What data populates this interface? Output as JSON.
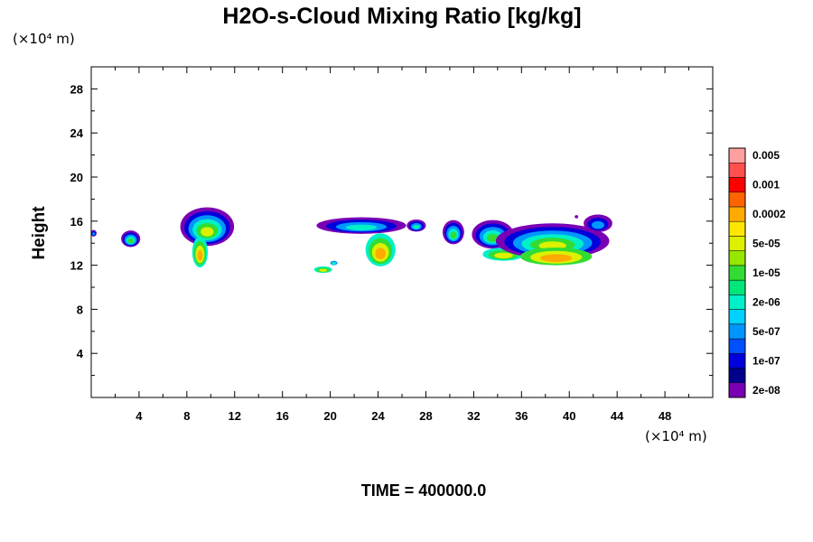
{
  "chart_data": {
    "type": "heatmap",
    "title": "H2O-s-Cloud Mixing Ratio [kg/kg]",
    "ylabel": "Height",
    "x_unit_label": "(×10⁴ m)",
    "y_unit_label": "(×10⁴ m)",
    "footer": "TIME = 400000.0",
    "xlim": [
      0,
      52
    ],
    "ylim": [
      0,
      30
    ],
    "x_ticks": [
      4,
      8,
      12,
      16,
      20,
      24,
      28,
      32,
      36,
      40,
      44,
      48
    ],
    "x_tick_labels": [
      "4",
      "8",
      "12",
      "16",
      "20",
      "24",
      "28",
      "32",
      "36",
      "40",
      "44",
      "48"
    ],
    "y_ticks": [
      4,
      8,
      12,
      16,
      20,
      24,
      28
    ],
    "y_tick_labels": [
      "4",
      "8",
      "12",
      "16",
      "20",
      "24",
      "28"
    ],
    "legend_placement": "right",
    "colorbar": {
      "colors": [
        "#7a00b4",
        "#00008c",
        "#0000dc",
        "#0050ff",
        "#0096ff",
        "#00d2ff",
        "#00f0c8",
        "#00e678",
        "#32dc32",
        "#96e600",
        "#dcf000",
        "#ffe600",
        "#ffaa00",
        "#ff6400",
        "#ff0000",
        "#ff5050",
        "#ffa0a0"
      ],
      "labels": [
        {
          "text": "2e-08",
          "level": 0.5
        },
        {
          "text": "1e-07",
          "level": 2.5
        },
        {
          "text": "5e-07",
          "level": 4.5
        },
        {
          "text": "2e-06",
          "level": 6.5
        },
        {
          "text": "1e-05",
          "level": 8.5
        },
        {
          "text": "5e-05",
          "level": 10.5
        },
        {
          "text": "0.0002",
          "level": 12.5
        },
        {
          "text": "0.001",
          "level": 14.5
        },
        {
          "text": "0.005",
          "level": 16.5
        }
      ]
    },
    "clouds": [
      {
        "shape": "blob",
        "xc": 3.3,
        "yc": 14.4,
        "w": 1.6,
        "h": 1.5,
        "levels": [
          0,
          2,
          4,
          6,
          8
        ]
      },
      {
        "shape": "blob",
        "xc": 0.2,
        "yc": 14.9,
        "w": 0.5,
        "h": 0.6,
        "levels": [
          0,
          2,
          4
        ]
      },
      {
        "shape": "blob",
        "xc": 9.7,
        "yc": 15.5,
        "w": 4.5,
        "h": 3.5,
        "levels": [
          0,
          2,
          4,
          6,
          8,
          10
        ]
      },
      {
        "shape": "blob",
        "xc": 9.1,
        "yc": 13.2,
        "w": 1.3,
        "h": 2.8,
        "levels": [
          6,
          8,
          10,
          12
        ]
      },
      {
        "shape": "blob",
        "xc": 19.4,
        "yc": 11.6,
        "w": 1.5,
        "h": 0.6,
        "levels": [
          6,
          8,
          10
        ]
      },
      {
        "shape": "blob",
        "xc": 20.3,
        "yc": 12.2,
        "w": 0.6,
        "h": 0.4,
        "levels": [
          4,
          6
        ]
      },
      {
        "shape": "blob",
        "xc": 22.6,
        "yc": 15.6,
        "w": 7.5,
        "h": 1.5,
        "levels": [
          0,
          2,
          4,
          6
        ]
      },
      {
        "shape": "blob",
        "xc": 24.2,
        "yc": 13.4,
        "w": 2.5,
        "h": 3.0,
        "levels": [
          6,
          8,
          10,
          12
        ]
      },
      {
        "shape": "blob",
        "xc": 27.2,
        "yc": 15.6,
        "w": 1.6,
        "h": 1.1,
        "levels": [
          0,
          2,
          4,
          6
        ]
      },
      {
        "shape": "blob",
        "xc": 30.3,
        "yc": 15.0,
        "w": 1.8,
        "h": 2.2,
        "levels": [
          0,
          2,
          4,
          6,
          8
        ]
      },
      {
        "shape": "blob",
        "xc": 33.6,
        "yc": 14.8,
        "w": 3.5,
        "h": 2.6,
        "levels": [
          0,
          2,
          4,
          6,
          8
        ]
      },
      {
        "shape": "blob",
        "xc": 34.5,
        "yc": 13.0,
        "w": 3.5,
        "h": 1.2,
        "levels": [
          6,
          8,
          10
        ]
      },
      {
        "shape": "blob",
        "xc": 38.6,
        "yc": 14.2,
        "w": 9.5,
        "h": 3.2,
        "levels": [
          0,
          2,
          4,
          6,
          8,
          10
        ]
      },
      {
        "shape": "blob",
        "xc": 38.9,
        "yc": 12.8,
        "w": 6.0,
        "h": 1.6,
        "levels": [
          8,
          10,
          12
        ]
      },
      {
        "shape": "blob",
        "xc": 42.4,
        "yc": 15.8,
        "w": 2.4,
        "h": 1.6,
        "levels": [
          0,
          2,
          4
        ]
      },
      {
        "shape": "blob",
        "xc": 40.6,
        "yc": 16.4,
        "w": 0.3,
        "h": 0.3,
        "levels": [
          0
        ]
      }
    ]
  }
}
